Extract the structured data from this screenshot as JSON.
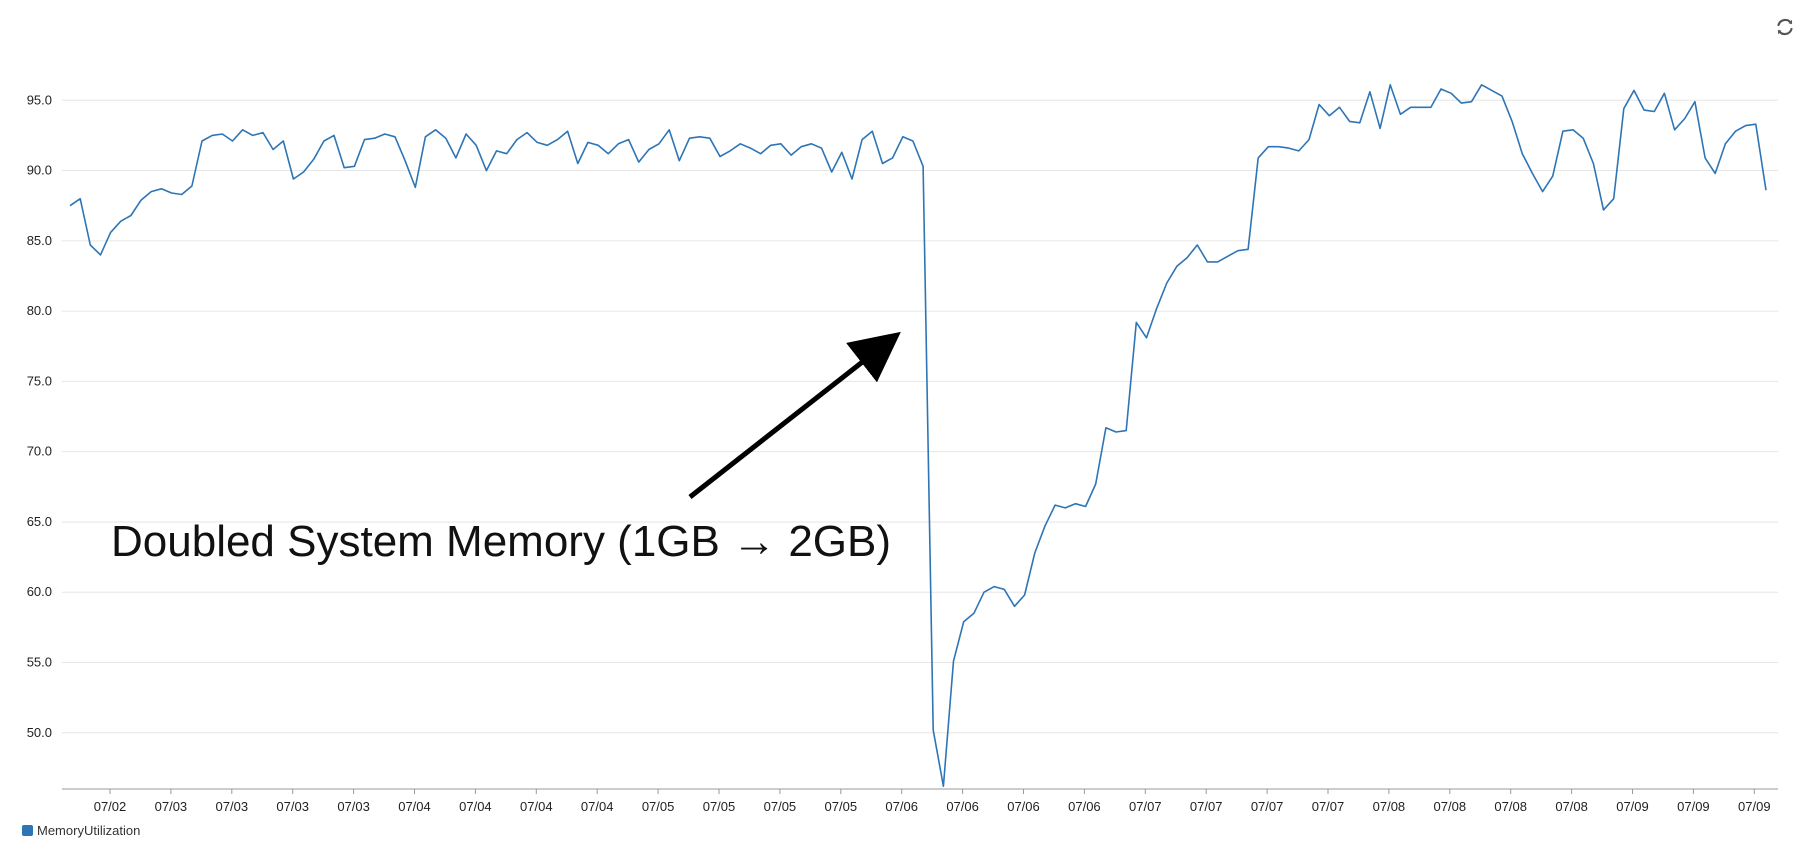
{
  "chart_data": {
    "type": "line",
    "ylim": [
      46,
      100
    ],
    "y_ticks": [
      50,
      55,
      60,
      65,
      70,
      75,
      80,
      85,
      90,
      95
    ],
    "y_tick_labels": [
      "50.0",
      "55.0",
      "60.0",
      "65.0",
      "70.0",
      "75.0",
      "80.0",
      "85.0",
      "90.0",
      "95.0"
    ],
    "x_tick_labels": [
      "07/02",
      "07/03",
      "07/03",
      "07/03",
      "07/03",
      "07/04",
      "07/04",
      "07/04",
      "07/04",
      "07/05",
      "07/05",
      "07/05",
      "07/05",
      "07/06",
      "07/06",
      "07/06",
      "07/06",
      "07/07",
      "07/07",
      "07/07",
      "07/07",
      "07/08",
      "07/08",
      "07/08",
      "07/08",
      "07/09",
      "07/09",
      "07/09"
    ],
    "grid": true,
    "legend_position": "bottom-left",
    "series": [
      {
        "name": "MemoryUtilization",
        "color": "#2e75b6",
        "values": [
          87.5,
          88.0,
          84.7,
          84.0,
          85.6,
          86.4,
          86.8,
          87.9,
          88.5,
          88.7,
          88.4,
          88.3,
          88.9,
          92.1,
          92.5,
          92.6,
          92.1,
          92.9,
          92.5,
          92.7,
          91.5,
          92.1,
          89.4,
          89.9,
          90.8,
          92.1,
          92.5,
          90.2,
          90.3,
          92.2,
          92.3,
          92.6,
          92.4,
          90.7,
          88.8,
          92.4,
          92.9,
          92.3,
          90.9,
          92.6,
          91.8,
          90.0,
          91.4,
          91.2,
          92.2,
          92.7,
          92.0,
          91.8,
          92.2,
          92.8,
          90.5,
          92.0,
          91.8,
          91.2,
          91.9,
          92.2,
          90.6,
          91.5,
          91.9,
          92.9,
          90.7,
          92.3,
          92.4,
          92.3,
          91.0,
          91.4,
          91.9,
          91.6,
          91.2,
          91.8,
          91.9,
          91.1,
          91.7,
          91.9,
          91.6,
          89.9,
          91.3,
          89.4,
          92.2,
          92.8,
          90.5,
          90.9,
          92.4,
          92.1,
          90.3,
          50.2,
          46.2,
          55.1,
          57.9,
          58.5,
          60.0,
          60.4,
          60.2,
          59.0,
          59.8,
          62.8,
          64.7,
          66.2,
          66.0,
          66.3,
          66.1,
          67.7,
          71.7,
          71.4,
          71.5,
          79.2,
          78.1,
          80.2,
          82.0,
          83.2,
          83.8,
          84.7,
          83.5,
          83.5,
          83.9,
          84.3,
          84.4,
          90.9,
          91.7,
          91.7,
          91.6,
          91.4,
          92.2,
          94.7,
          93.9,
          94.5,
          93.5,
          93.4,
          95.6,
          93.0,
          96.1,
          94.0,
          94.5,
          94.5,
          94.5,
          95.8,
          95.5,
          94.8,
          94.9,
          96.1,
          95.7,
          95.3,
          93.5,
          91.2,
          89.8,
          88.5,
          89.6,
          92.8,
          92.9,
          92.3,
          90.5,
          87.2,
          88.0,
          94.4,
          95.7,
          94.3,
          94.2,
          95.5,
          92.9,
          93.7,
          94.9,
          90.9,
          89.8,
          91.9,
          92.8,
          93.2,
          93.3,
          88.6
        ]
      }
    ],
    "annotations": [
      {
        "text": "Doubled System Memory (1GB → 2GB)",
        "arrow": "points to the drop at 07/06"
      }
    ]
  },
  "icons": {
    "refresh": "refresh-icon"
  }
}
